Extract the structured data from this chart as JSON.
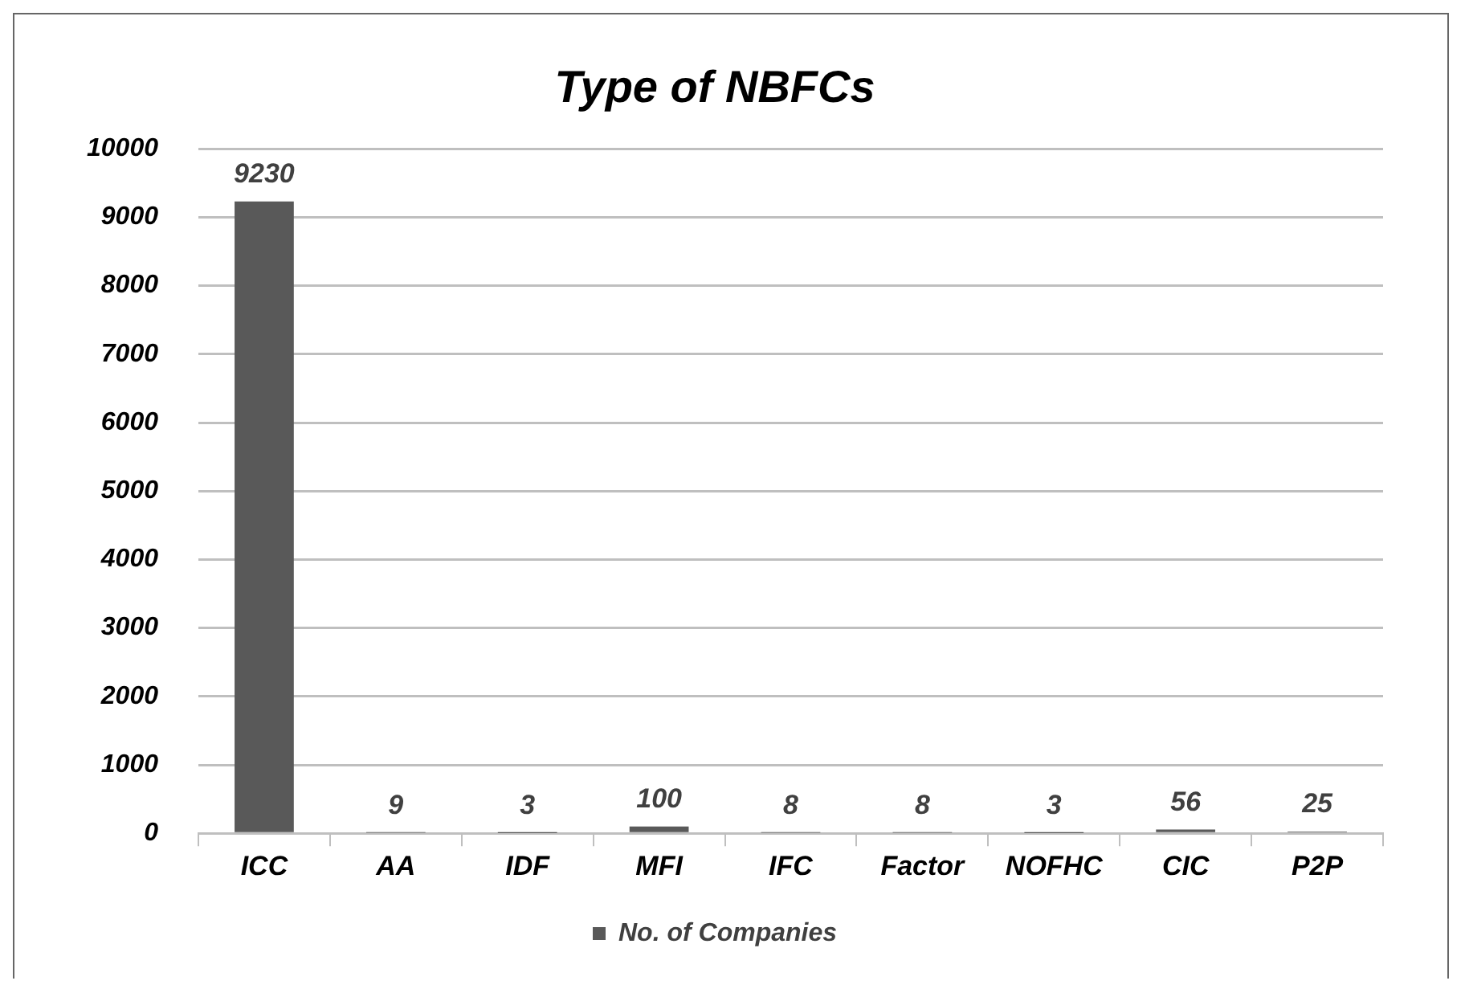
{
  "chart_data": {
    "type": "bar",
    "title": "Type of NBFCs",
    "categories": [
      "ICC",
      "AA",
      "IDF",
      "MFI",
      "IFC",
      "Factor",
      "NOFHC",
      "CIC",
      "P2P"
    ],
    "series": [
      {
        "name": "No. of Companies",
        "color": "#595959",
        "values": [
          9230,
          9,
          3,
          100,
          8,
          8,
          3,
          56,
          25
        ]
      }
    ],
    "ylim": [
      0,
      10000
    ],
    "yticks": [
      0,
      1000,
      2000,
      3000,
      4000,
      5000,
      6000,
      7000,
      8000,
      9000,
      10000
    ],
    "grid": "y",
    "legend": "bottom",
    "data_labels": true
  }
}
